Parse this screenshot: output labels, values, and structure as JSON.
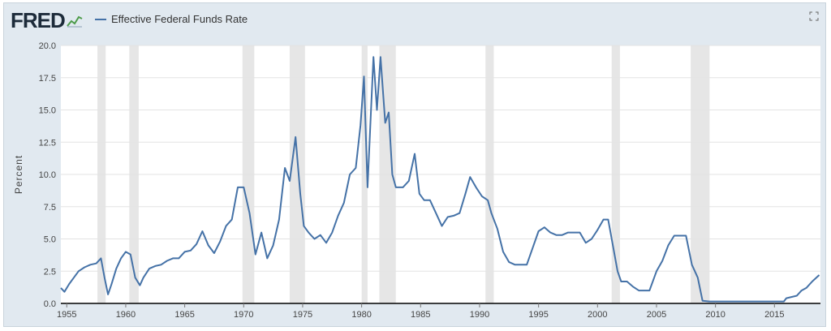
{
  "logo": {
    "text": "FRED"
  },
  "chart_data": {
    "type": "line",
    "title": "",
    "ylabel": "Percent",
    "xlabel": "",
    "xlim": [
      1954.5,
      2018.9
    ],
    "ylim": [
      0,
      20
    ],
    "yticks": [
      "0.0",
      "2.5",
      "5.0",
      "7.5",
      "10.0",
      "12.5",
      "15.0",
      "17.5",
      "20.0"
    ],
    "xticks": [
      "1955",
      "1960",
      "1965",
      "1970",
      "1975",
      "1980",
      "1985",
      "1990",
      "1995",
      "2000",
      "2005",
      "2010",
      "2015"
    ],
    "grid": true,
    "legend": "top-left",
    "series": [
      {
        "name": "Effective Federal Funds Rate",
        "color": "#4572a7",
        "points": [
          [
            1954.5,
            1.2
          ],
          [
            1954.8,
            0.9
          ],
          [
            1955.2,
            1.5
          ],
          [
            1955.6,
            2.0
          ],
          [
            1956.0,
            2.5
          ],
          [
            1956.5,
            2.8
          ],
          [
            1957.0,
            3.0
          ],
          [
            1957.5,
            3.1
          ],
          [
            1957.9,
            3.5
          ],
          [
            1958.2,
            2.0
          ],
          [
            1958.5,
            0.7
          ],
          [
            1958.8,
            1.5
          ],
          [
            1959.2,
            2.7
          ],
          [
            1959.6,
            3.5
          ],
          [
            1960.0,
            4.0
          ],
          [
            1960.4,
            3.8
          ],
          [
            1960.8,
            2.0
          ],
          [
            1961.2,
            1.4
          ],
          [
            1961.5,
            2.0
          ],
          [
            1962.0,
            2.7
          ],
          [
            1962.5,
            2.9
          ],
          [
            1963.0,
            3.0
          ],
          [
            1963.5,
            3.3
          ],
          [
            1964.0,
            3.5
          ],
          [
            1964.5,
            3.5
          ],
          [
            1965.0,
            4.0
          ],
          [
            1965.5,
            4.1
          ],
          [
            1966.0,
            4.6
          ],
          [
            1966.5,
            5.6
          ],
          [
            1967.0,
            4.5
          ],
          [
            1967.5,
            3.9
          ],
          [
            1968.0,
            4.8
          ],
          [
            1968.5,
            6.0
          ],
          [
            1969.0,
            6.5
          ],
          [
            1969.5,
            9.0
          ],
          [
            1970.0,
            9.0
          ],
          [
            1970.5,
            7.0
          ],
          [
            1971.0,
            3.8
          ],
          [
            1971.5,
            5.5
          ],
          [
            1972.0,
            3.5
          ],
          [
            1972.5,
            4.5
          ],
          [
            1973.0,
            6.5
          ],
          [
            1973.5,
            10.5
          ],
          [
            1973.9,
            9.5
          ],
          [
            1974.4,
            12.9
          ],
          [
            1974.8,
            8.5
          ],
          [
            1975.1,
            6.0
          ],
          [
            1975.5,
            5.5
          ],
          [
            1976.0,
            5.0
          ],
          [
            1976.5,
            5.3
          ],
          [
            1977.0,
            4.7
          ],
          [
            1977.5,
            5.5
          ],
          [
            1978.0,
            6.8
          ],
          [
            1978.5,
            7.8
          ],
          [
            1979.0,
            10.0
          ],
          [
            1979.5,
            10.5
          ],
          [
            1979.9,
            13.8
          ],
          [
            1980.2,
            17.6
          ],
          [
            1980.5,
            9.0
          ],
          [
            1980.8,
            15.0
          ],
          [
            1981.0,
            19.1
          ],
          [
            1981.3,
            15.0
          ],
          [
            1981.6,
            19.1
          ],
          [
            1982.0,
            14.0
          ],
          [
            1982.3,
            14.8
          ],
          [
            1982.6,
            10.0
          ],
          [
            1982.9,
            9.0
          ],
          [
            1983.5,
            9.0
          ],
          [
            1984.0,
            9.5
          ],
          [
            1984.5,
            11.6
          ],
          [
            1984.9,
            8.5
          ],
          [
            1985.3,
            8.0
          ],
          [
            1985.8,
            8.0
          ],
          [
            1986.3,
            7.0
          ],
          [
            1986.8,
            6.0
          ],
          [
            1987.3,
            6.7
          ],
          [
            1987.8,
            6.8
          ],
          [
            1988.3,
            7.0
          ],
          [
            1988.8,
            8.5
          ],
          [
            1989.2,
            9.8
          ],
          [
            1989.7,
            9.0
          ],
          [
            1990.2,
            8.3
          ],
          [
            1990.7,
            8.0
          ],
          [
            1991.0,
            7.0
          ],
          [
            1991.5,
            5.8
          ],
          [
            1992.0,
            4.0
          ],
          [
            1992.5,
            3.2
          ],
          [
            1993.0,
            3.0
          ],
          [
            1994.0,
            3.0
          ],
          [
            1994.5,
            4.3
          ],
          [
            1995.0,
            5.6
          ],
          [
            1995.5,
            5.9
          ],
          [
            1996.0,
            5.5
          ],
          [
            1996.5,
            5.3
          ],
          [
            1997.0,
            5.3
          ],
          [
            1997.5,
            5.5
          ],
          [
            1998.0,
            5.5
          ],
          [
            1998.5,
            5.5
          ],
          [
            1999.0,
            4.7
          ],
          [
            1999.5,
            5.0
          ],
          [
            2000.0,
            5.7
          ],
          [
            2000.5,
            6.5
          ],
          [
            2000.9,
            6.5
          ],
          [
            2001.3,
            4.5
          ],
          [
            2001.7,
            2.5
          ],
          [
            2002.0,
            1.7
          ],
          [
            2002.5,
            1.7
          ],
          [
            2003.0,
            1.3
          ],
          [
            2003.5,
            1.0
          ],
          [
            2004.4,
            1.0
          ],
          [
            2005.0,
            2.5
          ],
          [
            2005.5,
            3.3
          ],
          [
            2006.0,
            4.5
          ],
          [
            2006.5,
            5.25
          ],
          [
            2007.5,
            5.25
          ],
          [
            2008.0,
            3.0
          ],
          [
            2008.5,
            2.0
          ],
          [
            2008.9,
            0.2
          ],
          [
            2009.5,
            0.15
          ],
          [
            2012.0,
            0.15
          ],
          [
            2015.8,
            0.15
          ],
          [
            2016.0,
            0.4
          ],
          [
            2016.9,
            0.6
          ],
          [
            2017.3,
            1.0
          ],
          [
            2017.7,
            1.2
          ],
          [
            2018.2,
            1.7
          ],
          [
            2018.8,
            2.2
          ]
        ]
      }
    ],
    "recessions": [
      [
        1957.6,
        1958.3
      ],
      [
        1960.3,
        1961.1
      ],
      [
        1969.9,
        1970.9
      ],
      [
        1973.9,
        1975.2
      ],
      [
        1980.0,
        1980.5
      ],
      [
        1981.5,
        1982.9
      ],
      [
        1990.5,
        1991.2
      ],
      [
        2001.2,
        2001.9
      ],
      [
        2007.9,
        2009.5
      ]
    ]
  }
}
